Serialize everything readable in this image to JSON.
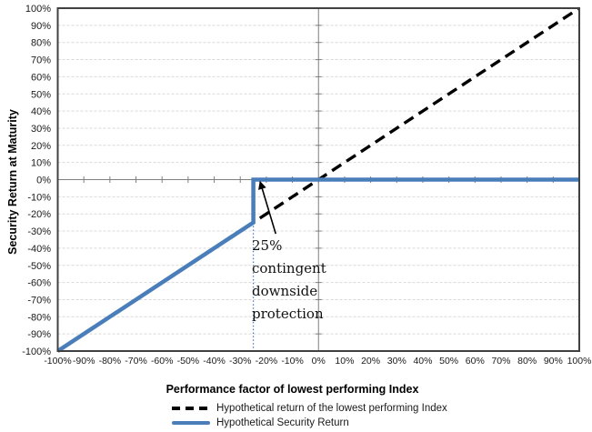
{
  "chart_data": {
    "type": "line",
    "title": "",
    "xlabel": "Performance factor of lowest performing Index",
    "ylabel": "Security Return at Maturity",
    "xlim": [
      -100,
      100
    ],
    "ylim": [
      -100,
      100
    ],
    "grid": "horizontal-dashed",
    "legend_position": "bottom",
    "x_tick_values": [
      -100,
      -90,
      -80,
      -70,
      -60,
      -50,
      -40,
      -30,
      -20,
      -10,
      0,
      10,
      20,
      30,
      40,
      50,
      60,
      70,
      80,
      90,
      100
    ],
    "x_tick_labels": [
      "-100%",
      "-90%",
      "-80%",
      "-70%",
      "-60%",
      "-50%",
      "-40%",
      "-30%",
      "-20%",
      "-10%",
      "0%",
      "10%",
      "20%",
      "30%",
      "40%",
      "50%",
      "60%",
      "70%",
      "80%",
      "90%",
      "100%"
    ],
    "y_tick_values": [
      -100,
      -90,
      -80,
      -70,
      -60,
      -50,
      -40,
      -30,
      -20,
      -10,
      0,
      10,
      20,
      30,
      40,
      50,
      60,
      70,
      80,
      90,
      100
    ],
    "y_tick_labels": [
      "-100%",
      "-90%",
      "-80%",
      "-70%",
      "-60%",
      "-50%",
      "-40%",
      "-30%",
      "-20%",
      "-10%",
      "0%",
      "10%",
      "20%",
      "30%",
      "40%",
      "50%",
      "60%",
      "70%",
      "80%",
      "90%",
      "100%"
    ],
    "series": [
      {
        "name": "Hypothetical return of the lowest performing Index",
        "style": "dashed",
        "color": "#000000",
        "points": [
          [
            -100,
            -100
          ],
          [
            100,
            100
          ]
        ]
      },
      {
        "name": "Hypothetical Security Return",
        "style": "solid",
        "color": "#4a7ebb",
        "points": [
          [
            -100,
            -100
          ],
          [
            -25,
            -25
          ],
          [
            -25,
            0
          ],
          [
            100,
            0
          ]
        ]
      }
    ],
    "annotation": {
      "text": "25%\ncontingent\ndownside\nprotection",
      "arrow_from": [
        -16.4,
        -31.6
      ],
      "arrow_to": [
        -22.4,
        -1.2
      ],
      "guide_line": {
        "x": -25,
        "from_y": -25,
        "to_y": -100,
        "color": "#4a7ebb"
      }
    },
    "colors": {
      "grid": "#d9d9d9",
      "axis_zero": "#7f7f7f",
      "border": "#404040",
      "tick_text": "#1a1a1a"
    }
  }
}
